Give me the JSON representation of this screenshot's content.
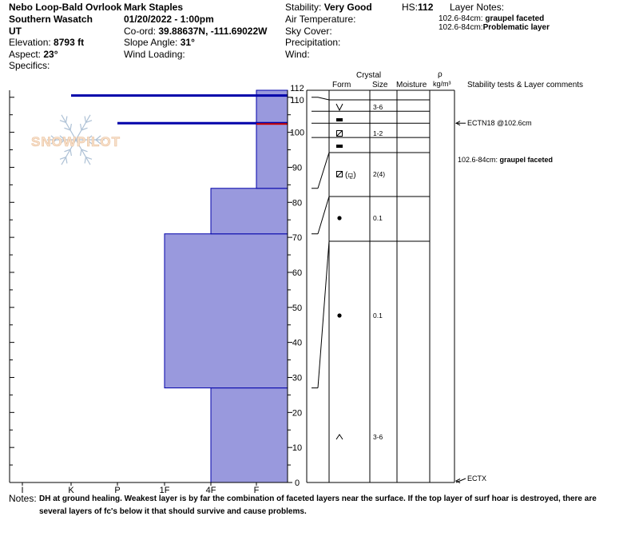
{
  "header": {
    "location": "Nebo Loop-Bald Ovrlook",
    "range": "Southern Wasatch",
    "state": "UT",
    "elevation_label": "Elevation:",
    "elevation": "8793 ft",
    "aspect_label": "Aspect:",
    "aspect": "23°",
    "specifics_label": "Specifics:",
    "observer": "Mark Staples",
    "datetime": "01/20/2022 - 1:00pm",
    "coord_label": "Co-ord:",
    "coord": "39.88637N, -111.69022W",
    "slope_label": "Slope Angle:",
    "slope": "31°",
    "wind_loading_label": "Wind Loading:",
    "stability_label": "Stability:",
    "stability": "Very Good",
    "air_temp_label": "Air Temperature:",
    "sky_label": "Sky Cover:",
    "precip_label": "Precipitation:",
    "wind_label": "Wind:",
    "hs_label": "HS:",
    "hs": "112",
    "layer_notes_title": "Layer Notes:",
    "layer_notes": [
      {
        "range": "102.6-84cm:",
        "text": "graupel faceted"
      },
      {
        "range": "102.6-84cm:",
        "text": "Problematic layer"
      }
    ]
  },
  "columns": {
    "crystal": "Crystal",
    "form": "Form",
    "size": "Size",
    "moisture": "Moisture",
    "rho": "ρ",
    "density_unit": "kg/m³",
    "stability": "Stability tests & Layer comments"
  },
  "watermark": "SNOWPILOT",
  "notes_label": "Notes:",
  "notes_text": "DH at ground healing. Weakest layer is by far the combination of faceted layers near the surface. If the top layer of surf hoar is destroyed, there are several layers of fc's below it that should survive and cause problems.",
  "colors": {
    "hardness_fill": "#9999dd",
    "hardness_edge": "#0000aa",
    "test_line": "#0000aa",
    "test_mark": "#cc0000"
  },
  "chart_data": {
    "type": "snow-profile",
    "hs": 112,
    "y_range": [
      0,
      112
    ],
    "y_ticks": [
      0,
      10,
      20,
      30,
      40,
      50,
      60,
      70,
      80,
      90,
      100,
      110,
      112
    ],
    "hardness_scale": [
      "I",
      "K",
      "P",
      "1F",
      "4F",
      "F"
    ],
    "hardness_layers": [
      {
        "bottom": 0,
        "top": 27,
        "hardness": "4F"
      },
      {
        "bottom": 27,
        "top": 71,
        "hardness": "1F"
      },
      {
        "bottom": 71,
        "top": 84,
        "hardness": "4F"
      },
      {
        "bottom": 84,
        "top": 112,
        "hardness": "F"
      }
    ],
    "shear_lines": [
      {
        "depth": 110.5,
        "extends_to": "K"
      },
      {
        "depth": 102.6,
        "extends_to": "P",
        "red_marker": true
      }
    ],
    "layers": [
      {
        "top": 112,
        "bottom": 110,
        "form": "surface-hoar",
        "size": "3-6"
      },
      {
        "top": 110,
        "bottom": 106,
        "form": "melt-form",
        "size": ""
      },
      {
        "top": 106,
        "bottom": 102.6,
        "form": "faceted",
        "size": "1-2"
      },
      {
        "top": 102.6,
        "bottom": 98.5,
        "form": "melt-form",
        "size": ""
      },
      {
        "top": 98.5,
        "bottom": 84,
        "form": "faceted-graupel",
        "size": "2(4)"
      },
      {
        "top": 84,
        "bottom": 71,
        "form": "round",
        "size": "0.1"
      },
      {
        "top": 71,
        "bottom": 27,
        "form": "round",
        "size": "0.1"
      },
      {
        "top": 27,
        "bottom": 0,
        "form": "depth-hoar",
        "size": "3-6"
      }
    ],
    "form_labels": {
      "faceted-graupel": "(⚼)"
    },
    "tests": [
      {
        "depth": 102.6,
        "label": "ECTN18 @102.6cm"
      },
      {
        "depth": 0,
        "label": "ECTX"
      }
    ],
    "comments": [
      {
        "depth": 91,
        "range": "102.6-84cm:",
        "text": "graupel faceted"
      }
    ]
  }
}
